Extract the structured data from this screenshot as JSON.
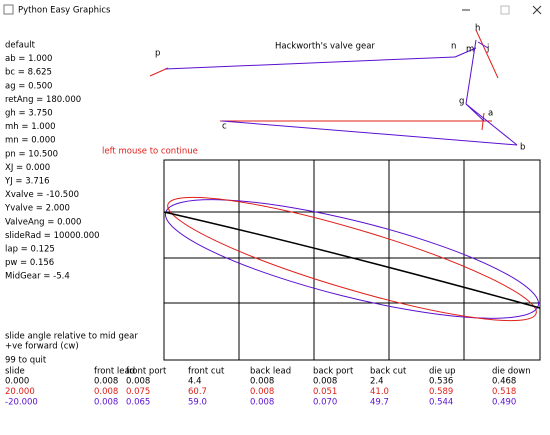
{
  "window": {
    "title": "Python Easy Graphics"
  },
  "parameters": [
    "default",
    "ab = 1.000",
    "bc = 8.625",
    "ag = 0.500",
    "retAng = 180.000",
    "gh = 3.750",
    "mh = 1.000",
    "mn = 0.000",
    "pn = 10.500",
    "XJ = 0.000",
    "YJ = 3.716",
    "Xvalve = -10.500",
    "Yvalve = 2.000",
    "ValveAng = 0.000",
    "slideRad = 10000.000",
    "lap = 0.125",
    "pw = 0.156",
    "MidGear = -5.4"
  ],
  "diagram": {
    "title": "Hackworth's valve gear",
    "points": [
      "p",
      "n",
      "h",
      "m",
      "j",
      "g",
      "a",
      "c",
      "b"
    ]
  },
  "message": "left mouse to continue",
  "notes": [
    "slide angle relative to mid gear",
    "+ve forward (cw)",
    "99 to quit"
  ],
  "table": {
    "header": [
      "slide",
      "front lead",
      "front port",
      "front cut",
      "back lead",
      "back port",
      "back cut",
      "die up",
      "die down"
    ],
    "rows": [
      [
        "0.000",
        "0.008",
        "0.008",
        "4.4",
        "0.008",
        "0.008",
        "2.4",
        "0.536",
        "0.468"
      ],
      [
        "20.000",
        "0.008",
        "0.075",
        "60.7",
        "0.008",
        "0.051",
        "41.0",
        "0.589",
        "0.518"
      ],
      [
        "-20.000",
        "0.008",
        "0.065",
        "59.0",
        "0.008",
        "0.070",
        "49.7",
        "0.544",
        "0.490"
      ]
    ]
  }
}
